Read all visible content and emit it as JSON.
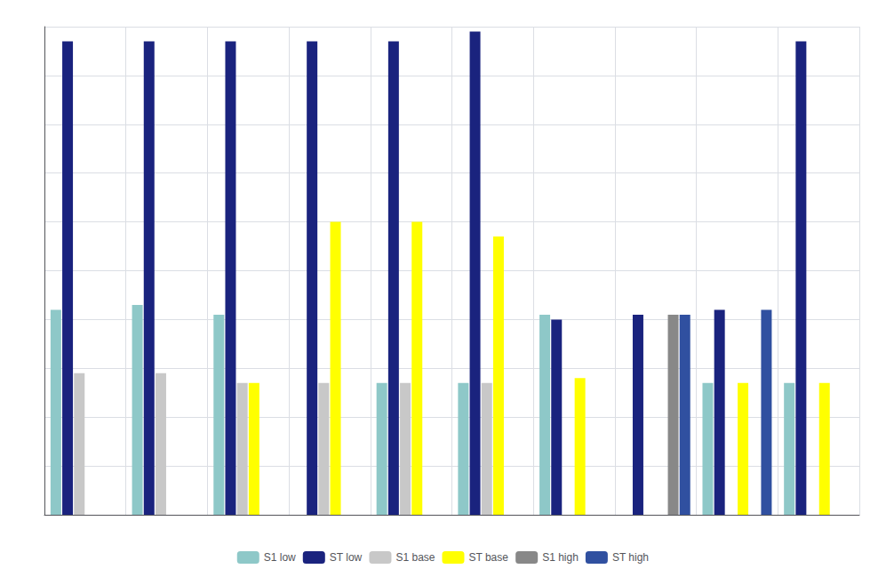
{
  "chart_data": {
    "type": "bar",
    "categories": [
      null,
      null,
      null,
      null,
      null,
      null,
      null,
      null,
      null,
      null
    ],
    "series": [
      {
        "name": "S1 low",
        "color": "#8ec8c8",
        "values": [
          0.42,
          0.43,
          0.41,
          0.0,
          0.27,
          0.27,
          0.41,
          0.0,
          0.27,
          0.27
        ]
      },
      {
        "name": "ST low",
        "color": "#1a237e",
        "values": [
          0.97,
          0.97,
          0.97,
          0.97,
          0.97,
          0.99,
          0.4,
          0.41,
          0.42,
          0.97
        ]
      },
      {
        "name": "S1 base",
        "color": "#c8c8c8",
        "values": [
          0.29,
          0.29,
          0.27,
          0.27,
          0.27,
          0.27,
          0.0,
          0.0,
          0.0,
          0.0
        ]
      },
      {
        "name": "ST base",
        "color": "#ffff00",
        "values": [
          0.0,
          0.0,
          0.27,
          0.6,
          0.6,
          0.57,
          0.28,
          0.0,
          0.27,
          0.27
        ]
      },
      {
        "name": "S1 high",
        "color": "#888888",
        "values": [
          0.0,
          0.0,
          0.0,
          0.0,
          0.0,
          0.0,
          0.0,
          0.41,
          0.0,
          0.0
        ]
      },
      {
        "name": "ST high",
        "color": "#3050a0",
        "values": [
          0.0,
          0.0,
          0.0,
          0.0,
          0.0,
          0.0,
          0.0,
          0.41,
          0.42,
          0.0
        ]
      }
    ],
    "ylim": [
      0,
      1.0
    ],
    "yticks": [
      0.0,
      0.1,
      0.2,
      0.3,
      0.4,
      0.5,
      0.6,
      0.7,
      0.8,
      0.9,
      1.0
    ],
    "grid": true,
    "tick_labels": false,
    "legend": "bottom"
  }
}
